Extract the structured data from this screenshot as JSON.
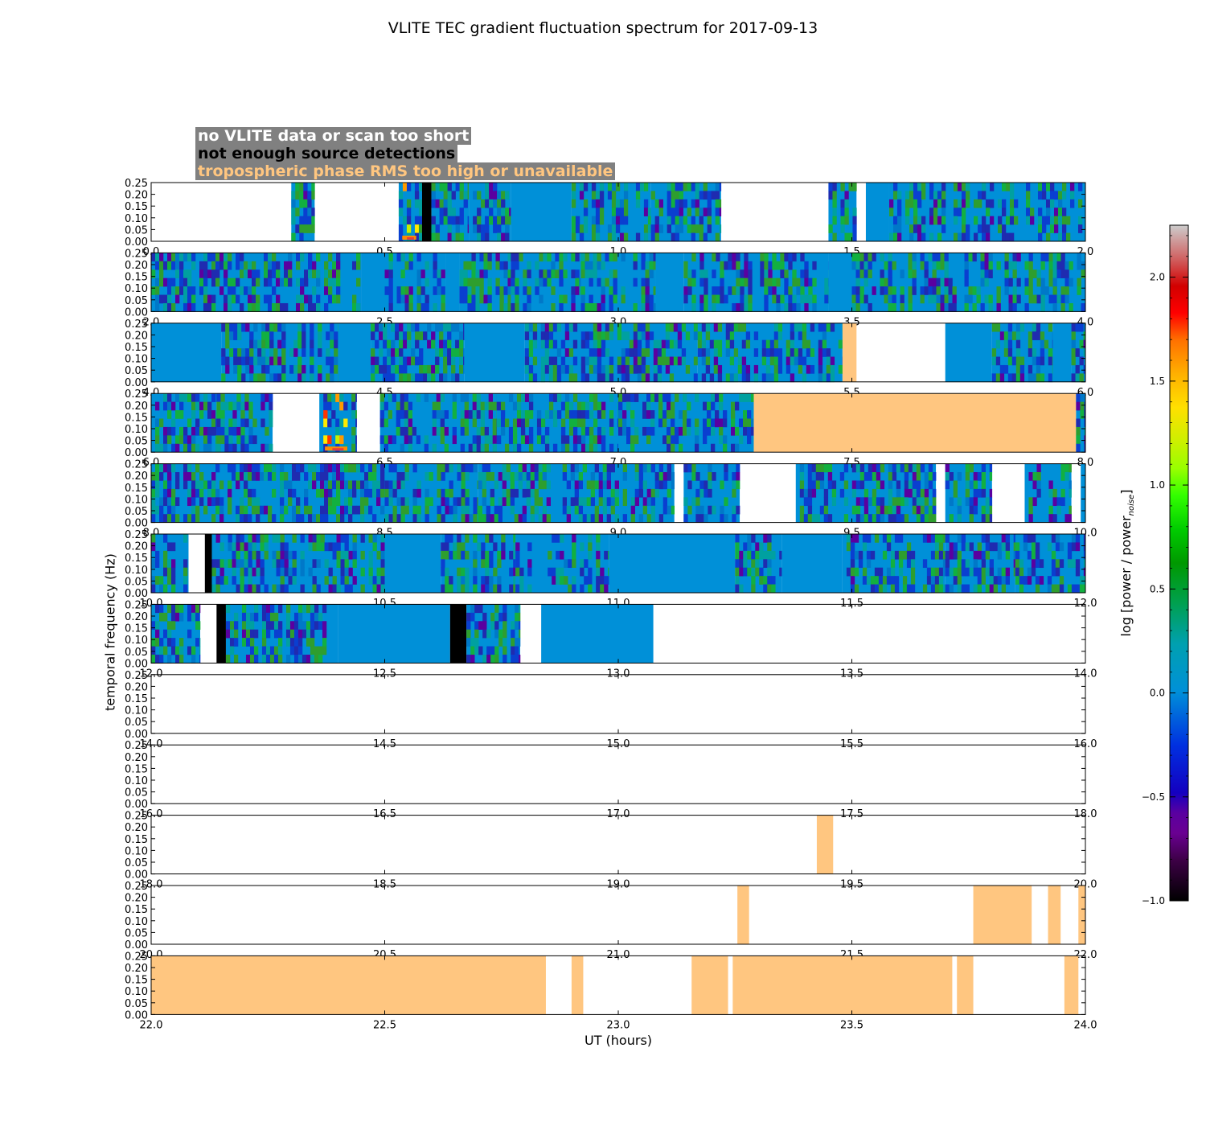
{
  "chart_data": {
    "type": "heatmap",
    "title": "VLITE TEC gradient fluctuation spectrum for 2017-09-13",
    "xlabel": "UT (hours)",
    "ylabel": "temporal frequency (Hz)",
    "ylim": [
      0,
      0.25
    ],
    "yticks": [
      "0.00",
      "0.05",
      "0.10",
      "0.15",
      "0.20",
      "0.25"
    ],
    "legend": {
      "grey": "no VLITE data or scan too short",
      "black": "not enough source detections",
      "orange": "tropospheric phase RMS too high or unavailable"
    },
    "colorbar": {
      "label_main": "log [power / power",
      "label_sub": "noise",
      "label_end": "]",
      "range": [
        -1.0,
        2.25
      ],
      "ticks": [
        "−1.0",
        "−0.5",
        "0.0",
        "0.5",
        "1.0",
        "1.5",
        "2.0"
      ],
      "tick_values": [
        -1.0,
        -0.5,
        0.0,
        0.5,
        1.0,
        1.5,
        2.0
      ]
    },
    "colors": {
      "orange": "#ffc680",
      "black": "#000000",
      "blue": "#0090d8",
      "grey_box": "#808080"
    },
    "panels": [
      {
        "range": [
          0,
          2
        ],
        "ticks": [
          "0.0",
          "0.5",
          "1.0",
          "1.5",
          "2.0"
        ],
        "segments": [
          {
            "s": 0.3,
            "e": 0.35,
            "t": "spec"
          },
          {
            "s": 0.53,
            "e": 0.58,
            "t": "spec",
            "hot": 1
          },
          {
            "s": 0.58,
            "e": 0.6,
            "t": "black"
          },
          {
            "s": 0.6,
            "e": 0.68,
            "t": "spec"
          },
          {
            "s": 0.68,
            "e": 0.77,
            "t": "spec"
          },
          {
            "s": 0.77,
            "e": 0.9,
            "t": "blue"
          },
          {
            "s": 0.9,
            "e": 1.07,
            "t": "spec"
          },
          {
            "s": 1.07,
            "e": 1.22,
            "t": "spec"
          },
          {
            "s": 1.45,
            "e": 1.51,
            "t": "spec"
          },
          {
            "s": 1.53,
            "e": 1.58,
            "t": "blue"
          },
          {
            "s": 1.58,
            "e": 2.0,
            "t": "spec"
          }
        ]
      },
      {
        "range": [
          2,
          4
        ],
        "ticks": [
          "2.0",
          "2.5",
          "3.0",
          "3.5",
          "4.0"
        ],
        "segments": [
          {
            "s": 2.0,
            "e": 2.45,
            "t": "spec"
          },
          {
            "s": 2.45,
            "e": 2.5,
            "t": "blue"
          },
          {
            "s": 2.5,
            "e": 2.63,
            "t": "spec"
          },
          {
            "s": 2.63,
            "e": 2.66,
            "t": "blue"
          },
          {
            "s": 2.66,
            "e": 2.77,
            "t": "spec"
          },
          {
            "s": 2.77,
            "e": 2.92,
            "t": "spec"
          },
          {
            "s": 2.92,
            "e": 3.08,
            "t": "spec"
          },
          {
            "s": 3.08,
            "e": 3.14,
            "t": "blue"
          },
          {
            "s": 3.14,
            "e": 3.45,
            "t": "spec"
          },
          {
            "s": 3.45,
            "e": 3.5,
            "t": "blue"
          },
          {
            "s": 3.5,
            "e": 4.0,
            "t": "spec"
          }
        ]
      },
      {
        "range": [
          4,
          6
        ],
        "ticks": [
          "4.0",
          "4.5",
          "5.0",
          "5.5",
          "6.0"
        ],
        "segments": [
          {
            "s": 4.0,
            "e": 4.15,
            "t": "blue"
          },
          {
            "s": 4.15,
            "e": 4.4,
            "t": "spec"
          },
          {
            "s": 4.4,
            "e": 4.47,
            "t": "blue"
          },
          {
            "s": 4.47,
            "e": 4.67,
            "t": "spec"
          },
          {
            "s": 4.67,
            "e": 4.8,
            "t": "blue"
          },
          {
            "s": 4.8,
            "e": 5.17,
            "t": "spec"
          },
          {
            "s": 5.17,
            "e": 5.48,
            "t": "spec"
          },
          {
            "s": 5.48,
            "e": 5.51,
            "t": "orange"
          },
          {
            "s": 5.7,
            "e": 5.8,
            "t": "blue"
          },
          {
            "s": 5.8,
            "e": 5.93,
            "t": "spec"
          },
          {
            "s": 5.93,
            "e": 5.97,
            "t": "blue"
          },
          {
            "s": 5.97,
            "e": 6.0,
            "t": "spec"
          }
        ]
      },
      {
        "range": [
          6,
          8
        ],
        "ticks": [
          "6.0",
          "6.5",
          "7.0",
          "7.5",
          "8.0"
        ],
        "segments": [
          {
            "s": 6.0,
            "e": 6.14,
            "t": "spec"
          },
          {
            "s": 6.14,
            "e": 6.26,
            "t": "spec"
          },
          {
            "s": 6.36,
            "e": 6.44,
            "t": "spec",
            "hot": 1
          },
          {
            "s": 6.49,
            "e": 6.74,
            "t": "spec"
          },
          {
            "s": 6.74,
            "e": 7.0,
            "t": "spec"
          },
          {
            "s": 7.0,
            "e": 7.29,
            "t": "spec"
          },
          {
            "s": 7.29,
            "e": 7.32,
            "t": "spec"
          },
          {
            "s": 7.29,
            "e": 7.98,
            "t": "orange"
          },
          {
            "s": 7.98,
            "e": 8.0,
            "t": "spec"
          }
        ]
      },
      {
        "range": [
          8,
          10
        ],
        "ticks": [
          "8.0",
          "8.5",
          "9.0",
          "9.5",
          "10.0"
        ],
        "segments": [
          {
            "s": 8.0,
            "e": 8.5,
            "t": "spec"
          },
          {
            "s": 8.5,
            "e": 8.7,
            "t": "spec"
          },
          {
            "s": 8.7,
            "e": 9.12,
            "t": "spec"
          },
          {
            "s": 9.14,
            "e": 9.26,
            "t": "spec"
          },
          {
            "s": 9.38,
            "e": 9.68,
            "t": "spec"
          },
          {
            "s": 9.7,
            "e": 9.8,
            "t": "spec"
          },
          {
            "s": 9.87,
            "e": 9.97,
            "t": "spec"
          },
          {
            "s": 9.99,
            "e": 10.0,
            "t": "blue"
          }
        ]
      },
      {
        "range": [
          10,
          12
        ],
        "ticks": [
          "10.0",
          "10.5",
          "11.0",
          "11.5",
          "12.0"
        ],
        "segments": [
          {
            "s": 10.0,
            "e": 10.08,
            "t": "spec"
          },
          {
            "s": 10.115,
            "e": 10.13,
            "t": "black"
          },
          {
            "s": 10.13,
            "e": 10.5,
            "t": "spec"
          },
          {
            "s": 10.5,
            "e": 10.62,
            "t": "blue"
          },
          {
            "s": 10.62,
            "e": 10.78,
            "t": "spec"
          },
          {
            "s": 10.78,
            "e": 10.98,
            "t": "spec"
          },
          {
            "s": 10.98,
            "e": 11.25,
            "t": "blue"
          },
          {
            "s": 11.25,
            "e": 11.35,
            "t": "spec"
          },
          {
            "s": 11.35,
            "e": 11.48,
            "t": "blue"
          },
          {
            "s": 11.48,
            "e": 11.7,
            "t": "spec"
          },
          {
            "s": 11.7,
            "e": 11.85,
            "t": "spec"
          },
          {
            "s": 11.85,
            "e": 12.0,
            "t": "spec"
          }
        ]
      },
      {
        "range": [
          12,
          14
        ],
        "ticks": [
          "12.0",
          "12.5",
          "13.0",
          "13.5",
          "14.0"
        ],
        "segments": [
          {
            "s": 12.0,
            "e": 12.105,
            "t": "spec"
          },
          {
            "s": 12.14,
            "e": 12.16,
            "t": "black"
          },
          {
            "s": 12.16,
            "e": 12.4,
            "t": "spec"
          },
          {
            "s": 12.4,
            "e": 12.64,
            "t": "blue"
          },
          {
            "s": 12.64,
            "e": 12.675,
            "t": "black"
          },
          {
            "s": 12.675,
            "e": 12.79,
            "t": "spec"
          },
          {
            "s": 12.835,
            "e": 13.075,
            "t": "blue"
          }
        ]
      },
      {
        "range": [
          14,
          16
        ],
        "ticks": [
          "14.0",
          "14.5",
          "15.0",
          "15.5",
          "16.0"
        ],
        "segments": []
      },
      {
        "range": [
          16,
          18
        ],
        "ticks": [
          "16.0",
          "16.5",
          "17.0",
          "17.5",
          "18.0"
        ],
        "segments": []
      },
      {
        "range": [
          18,
          20
        ],
        "ticks": [
          "18.0",
          "18.5",
          "19.0",
          "19.5",
          "20.0"
        ],
        "segments": [
          {
            "s": 19.425,
            "e": 19.46,
            "t": "orange"
          }
        ]
      },
      {
        "range": [
          20,
          22
        ],
        "ticks": [
          "20.0",
          "20.5",
          "21.0",
          "21.5",
          "22.0"
        ],
        "segments": [
          {
            "s": 21.255,
            "e": 21.28,
            "t": "orange"
          },
          {
            "s": 21.76,
            "e": 21.885,
            "t": "orange"
          },
          {
            "s": 21.92,
            "e": 21.947,
            "t": "orange"
          },
          {
            "s": 21.985,
            "e": 22.0,
            "t": "orange"
          }
        ]
      },
      {
        "range": [
          22,
          24
        ],
        "ticks": [
          "22.0",
          "22.5",
          "23.0",
          "23.5",
          "24.0"
        ],
        "segments": [
          {
            "s": 22.0,
            "e": 22.845,
            "t": "orange"
          },
          {
            "s": 22.9,
            "e": 22.925,
            "t": "orange"
          },
          {
            "s": 23.157,
            "e": 23.235,
            "t": "orange"
          },
          {
            "s": 23.245,
            "e": 23.715,
            "t": "orange"
          },
          {
            "s": 23.725,
            "e": 23.76,
            "t": "orange"
          },
          {
            "s": 23.955,
            "e": 23.985,
            "t": "orange"
          }
        ]
      }
    ]
  }
}
